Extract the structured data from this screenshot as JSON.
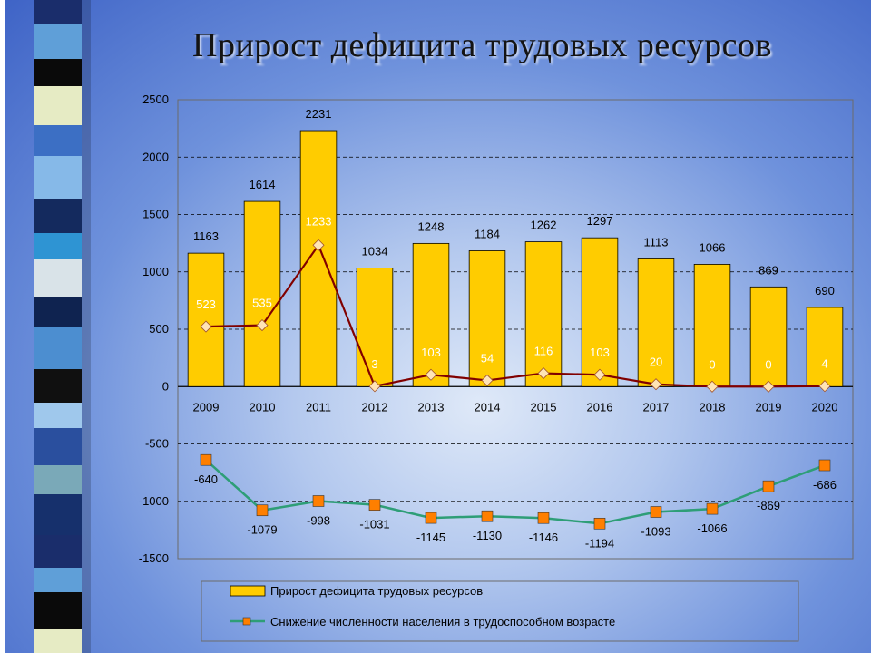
{
  "title": "Прирост дефицита трудовых ресурсов",
  "colors": {
    "bar_fill": "#FFCC00",
    "bar_stroke": "#000000",
    "line_dark_red": "#800000",
    "line_marker_fill": "#FFE4B5",
    "line_green": "#2E9E77",
    "line_green_marker": "#FF7F00"
  },
  "chart_data": {
    "type": "bar",
    "categories": [
      "2009",
      "2010",
      "2011",
      "2012",
      "2013",
      "2014",
      "2015",
      "2016",
      "2017",
      "2018",
      "2019",
      "2020"
    ],
    "ylim": [
      -1500,
      2500
    ],
    "yticks": [
      -1500,
      -1000,
      -500,
      0,
      500,
      1000,
      1500,
      2000,
      2500
    ],
    "grid": "dashed horizontal",
    "series": [
      {
        "name": "Прирост дефицита трудовых ресурсов",
        "kind": "bar",
        "values": [
          1163,
          1614,
          2231,
          1034,
          1248,
          1184,
          1262,
          1297,
          1113,
          1066,
          869,
          690
        ],
        "labels": [
          "1163",
          "1614",
          "2231",
          "1034",
          "1248",
          "1184",
          "1262",
          "1297",
          "1113",
          "1066",
          "869",
          "690"
        ]
      },
      {
        "name": "",
        "kind": "line",
        "values": [
          523,
          535,
          1233,
          3,
          103,
          54,
          116,
          103,
          20,
          0,
          0,
          4
        ],
        "labels": [
          "523",
          "535",
          "1233",
          "3",
          "103",
          "54",
          "116",
          "103",
          "20",
          "0",
          "0",
          "4"
        ]
      },
      {
        "name": "Снижение численности населения в трудоспособном возрасте",
        "kind": "line",
        "values": [
          -640,
          -1079,
          -998,
          -1031,
          -1145,
          -1130,
          -1146,
          -1194,
          -1093,
          -1066,
          -869,
          -686
        ],
        "labels": [
          "-640",
          "-1079",
          "-998",
          "-1031",
          "-1145",
          "-1130",
          "-1146",
          "-1194",
          "-1093",
          "-1066",
          "-869",
          "-686"
        ]
      }
    ],
    "legend": {
      "placement": "bottom",
      "entries": [
        "Прирост дефицита трудовых ресурсов",
        "Снижение численности населения в трудоспособном возрасте"
      ]
    }
  }
}
